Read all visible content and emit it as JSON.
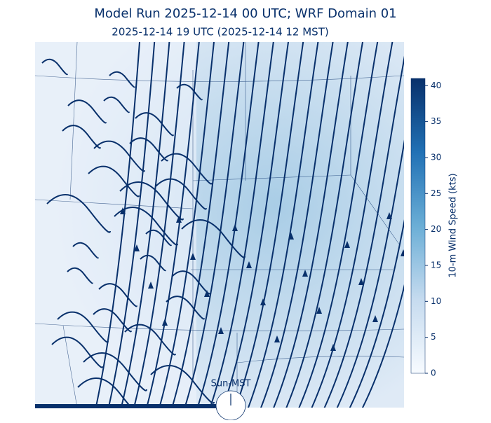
{
  "title": "Model Run 2025-12-14 00 UTC; WRF Domain 01",
  "subtitle": "2025-12-14 19 UTC  (2025-12-14 12 MST)",
  "colorbar": {
    "label": "10-m Wind Speed (kts)",
    "lim": [
      0,
      41
    ],
    "ticks": [
      0,
      5,
      10,
      15,
      20,
      25,
      30,
      35,
      40
    ]
  },
  "clock_label": "Sun-MST"
}
